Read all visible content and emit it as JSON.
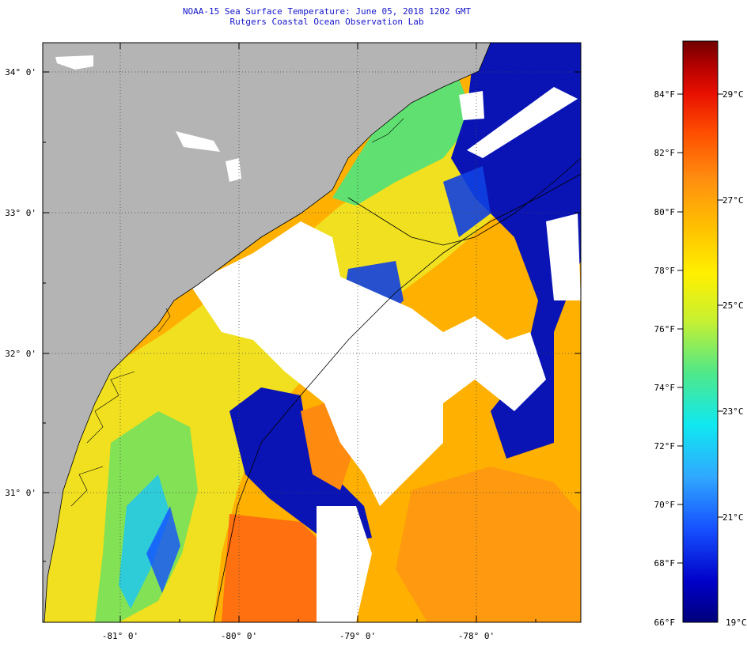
{
  "title": "NOAA-15 Sea Surface Temperature:  June 05, 2018 1202 GMT",
  "subtitle": "Rutgers Coastal Ocean Observation Lab",
  "map": {
    "lat_labels": [
      "34° 0'",
      "33° 0'",
      "32° 0'",
      "31° 0'"
    ],
    "lon_labels": [
      "-81° 0'",
      "-80° 0'",
      "-79° 0'",
      "-78° 0'"
    ],
    "land_color": "#b4b4b4",
    "cloud_color": "#ffffff"
  },
  "colorbar": {
    "fahrenheit_labels": [
      "84°F",
      "82°F",
      "80°F",
      "78°F",
      "76°F",
      "74°F",
      "72°F",
      "70°F",
      "68°F",
      "66°F"
    ],
    "celsius_labels": [
      "29°C",
      "27°C",
      "25°C",
      "23°C",
      "21°C",
      "19°C"
    ],
    "colors": [
      "#00007a",
      "#0000c8",
      "#1650ff",
      "#30a8ff",
      "#10e8f0",
      "#50e888",
      "#c8f030",
      "#fff000",
      "#ffc000",
      "#ff9010",
      "#ff5000",
      "#e81000",
      "#b00000",
      "#700000"
    ]
  }
}
